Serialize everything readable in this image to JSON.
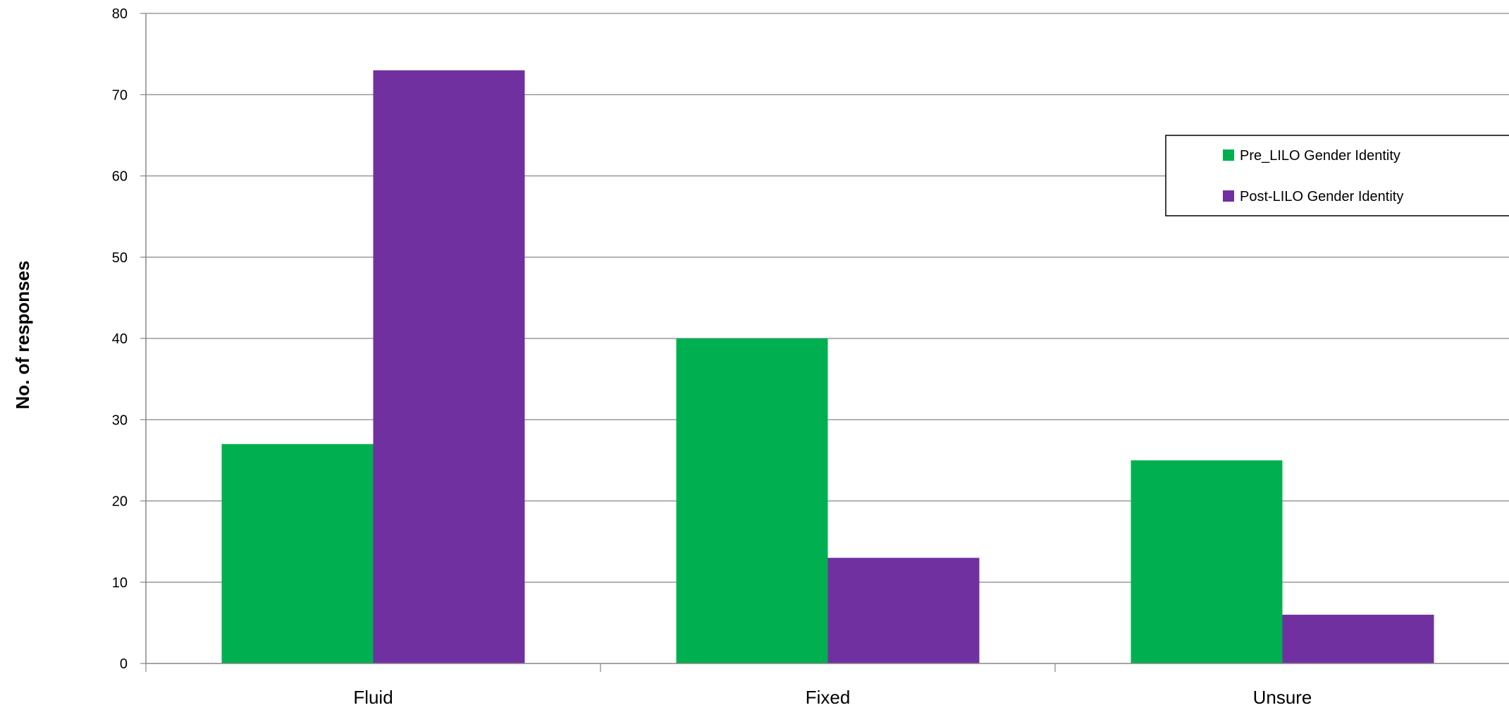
{
  "chart_data": {
    "type": "bar",
    "title": "",
    "xlabel": "",
    "ylabel": "No. of responses",
    "ylim": [
      0,
      80
    ],
    "yticks": [
      0,
      10,
      20,
      30,
      40,
      50,
      60,
      70,
      80
    ],
    "grid": true,
    "legend_position": "top-right",
    "categories": [
      "Fluid",
      "Fixed",
      "Unsure"
    ],
    "series": [
      {
        "name": "Pre_LILO Gender Identity",
        "color": "#00B050",
        "values": [
          27,
          40,
          25
        ]
      },
      {
        "name": "Post-LILO Gender Identity",
        "color": "#7030A0",
        "values": [
          73,
          13,
          6
        ]
      }
    ]
  }
}
